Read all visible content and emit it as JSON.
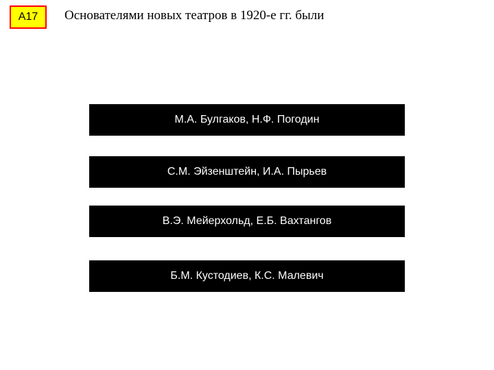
{
  "badge": {
    "label": "А17"
  },
  "question": {
    "text": "Основателями новых театров в 1920-е гг. были"
  },
  "options": [
    {
      "label": "М.А. Булгаков, Н.Ф. Погодин"
    },
    {
      "label": "С.М. Эйзенштейн, И.А. Пырьев"
    },
    {
      "label": "В.Э. Мейерхольд, Е.Б. Вахтангов"
    },
    {
      "label": "Б.М. Кустодиев, К.С. Малевич"
    }
  ],
  "style": {
    "type": "infographic",
    "background_color": "#ffffff",
    "badge_bg": "#ffff00",
    "badge_border": "#ff0000",
    "badge_fontsize": 16,
    "question_color": "#000000",
    "question_fontsize": 19,
    "option_bg": "#000000",
    "option_text_color": "#ffffff",
    "option_fontsize": 16,
    "option_width": 460,
    "option_height": 46,
    "option_gap": 30
  }
}
